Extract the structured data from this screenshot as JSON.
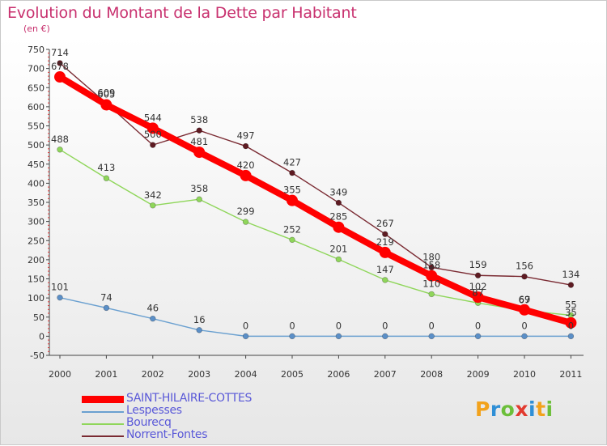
{
  "title": "Evolution du Montant de la Dette par Habitant",
  "subtitle": "(en €)",
  "logo": {
    "text": "Proxiti"
  },
  "chart_data": {
    "type": "line",
    "title": "Evolution du Montant de la Dette par Habitant",
    "ylabel": "(en €)",
    "x": [
      "2000",
      "2001",
      "2002",
      "2003",
      "2004",
      "2005",
      "2006",
      "2007",
      "2008",
      "2009",
      "2010",
      "2011"
    ],
    "ylim": [
      -50,
      750
    ],
    "yticks": [
      -50,
      0,
      50,
      100,
      150,
      200,
      250,
      300,
      350,
      400,
      450,
      500,
      550,
      600,
      650,
      700,
      750
    ],
    "grid": false,
    "legend_position": "bottom-left",
    "series": [
      {
        "name": "SAINT-HILAIRE-COTTES",
        "color": "#ff0000",
        "values": [
          678,
          605,
          544,
          481,
          420,
          355,
          285,
          219,
          158,
          102,
          69,
          35
        ]
      },
      {
        "name": "Lespesses",
        "color": "#6aa0d0",
        "values": [
          101,
          74,
          46,
          16,
          0,
          0,
          0,
          0,
          0,
          0,
          0,
          0
        ]
      },
      {
        "name": "Bourecq",
        "color": "#8fd65a",
        "values": [
          488,
          413,
          342,
          358,
          299,
          252,
          201,
          147,
          110,
          87,
          67,
          55
        ]
      },
      {
        "name": "Norrent-Fontes",
        "color": "#7a2a32",
        "values": [
          714,
          609,
          500,
          538,
          497,
          427,
          349,
          267,
          180,
          159,
          156,
          134
        ]
      }
    ]
  }
}
